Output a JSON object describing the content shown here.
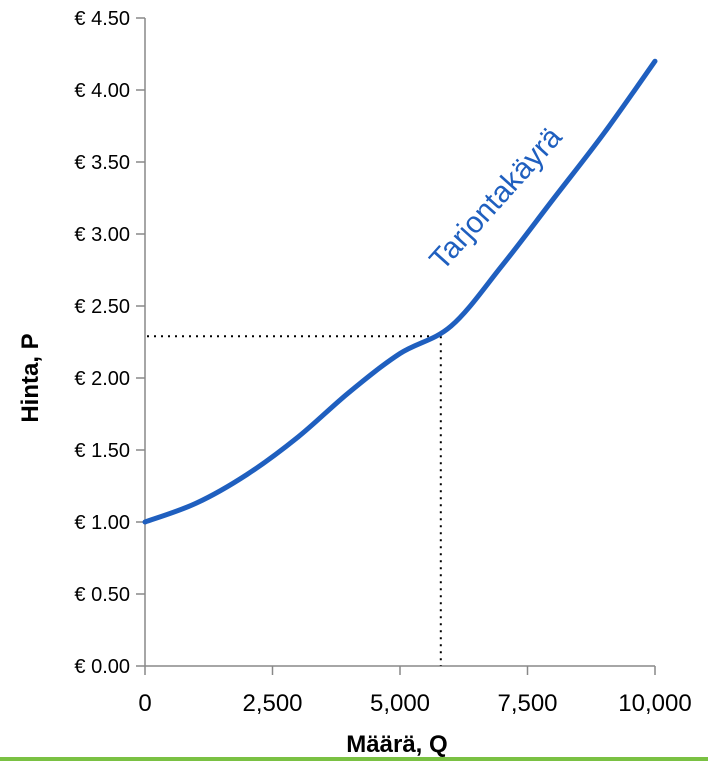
{
  "chart_data": {
    "type": "line",
    "title": "",
    "xlabel": "Määrä, Q",
    "ylabel": "Hinta, P",
    "xlim": [
      0,
      10000
    ],
    "ylim": [
      0,
      4.5
    ],
    "x_ticks": [
      0,
      2500,
      5000,
      7500,
      10000
    ],
    "x_tick_labels": [
      "0",
      "2,500",
      "5,000",
      "7,500",
      "10,000"
    ],
    "y_ticks": [
      0,
      0.5,
      1,
      1.5,
      2,
      2.5,
      3,
      3.5,
      4,
      4.5
    ],
    "y_tick_labels": [
      "€ 0.00",
      "€ 0.50",
      "€ 1.00",
      "€ 1.50",
      "€ 2.00",
      "€ 2.50",
      "€ 3.00",
      "€ 3.50",
      "€ 4.00",
      "€ 4.50"
    ],
    "grid": false,
    "series": [
      {
        "name": "Tarjontakäyrä",
        "color": "#1f5fbf",
        "x": [
          0,
          1000,
          2000,
          3000,
          4000,
          5000,
          6000,
          7000,
          8000,
          9000,
          10000
        ],
        "y": [
          1.0,
          1.13,
          1.33,
          1.59,
          1.9,
          2.17,
          2.36,
          2.78,
          3.24,
          3.7,
          4.2
        ]
      }
    ],
    "reference_point": {
      "x": 5800,
      "y": 2.29
    },
    "axis_color": "#888888",
    "reference_line_color": "#000000"
  },
  "footer": {
    "bar_color": "#7ac143"
  }
}
